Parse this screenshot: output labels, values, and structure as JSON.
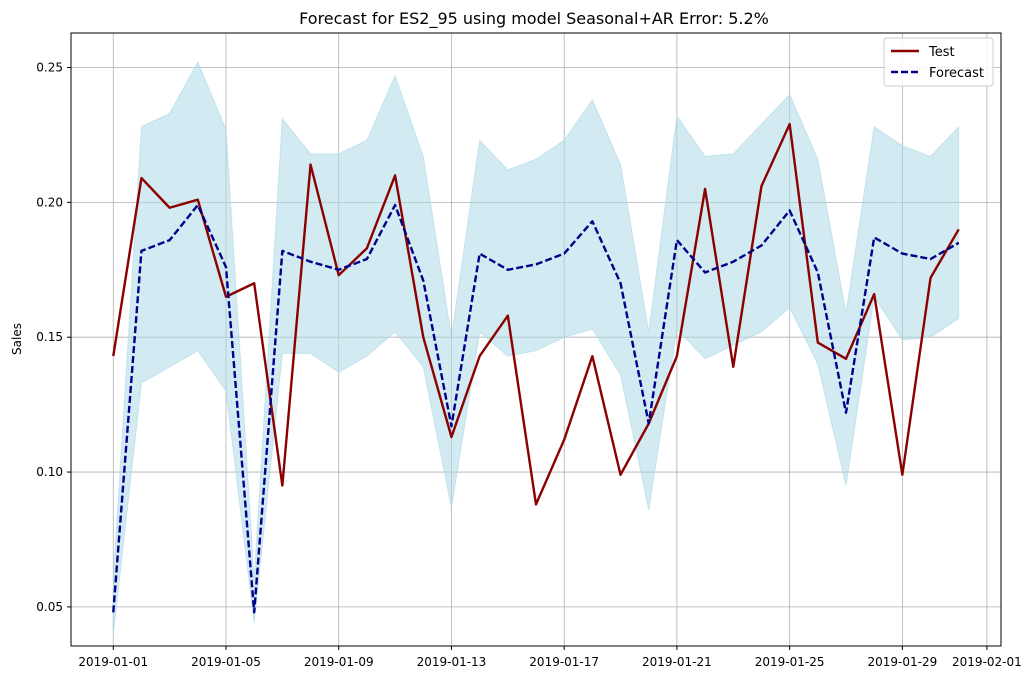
{
  "chart_data": {
    "type": "line",
    "title": "Forecast for ES2_95 using model Seasonal+AR Error: 5.2%",
    "xlabel": "",
    "ylabel": "Sales",
    "x": [
      "2019-01-01",
      "2019-01-02",
      "2019-01-03",
      "2019-01-04",
      "2019-01-05",
      "2019-01-06",
      "2019-01-07",
      "2019-01-08",
      "2019-01-09",
      "2019-01-10",
      "2019-01-11",
      "2019-01-12",
      "2019-01-13",
      "2019-01-14",
      "2019-01-15",
      "2019-01-16",
      "2019-01-17",
      "2019-01-18",
      "2019-01-19",
      "2019-01-20",
      "2019-01-21",
      "2019-01-22",
      "2019-01-23",
      "2019-01-24",
      "2019-01-25",
      "2019-01-26",
      "2019-01-27",
      "2019-01-28",
      "2019-01-29",
      "2019-01-30",
      "2019-01-31"
    ],
    "series": [
      {
        "name": "Test",
        "color": "#8b0000",
        "style": "solid",
        "values": [
          0.143,
          0.209,
          0.198,
          0.201,
          0.165,
          0.17,
          0.095,
          0.214,
          0.173,
          0.183,
          0.21,
          0.15,
          0.113,
          0.143,
          0.158,
          0.088,
          0.112,
          0.143,
          0.099,
          0.118,
          0.143,
          0.205,
          0.139,
          0.206,
          0.229,
          0.148,
          0.142,
          0.166,
          0.099,
          0.172,
          0.19
        ]
      },
      {
        "name": "Forecast",
        "color": "#00008b",
        "style": "dashed",
        "values": [
          0.048,
          0.182,
          0.186,
          0.199,
          0.176,
          0.048,
          0.182,
          0.178,
          0.175,
          0.179,
          0.199,
          0.171,
          0.117,
          0.181,
          0.175,
          0.177,
          0.181,
          0.193,
          0.17,
          0.118,
          0.186,
          0.174,
          0.178,
          0.184,
          0.197,
          0.174,
          0.122,
          0.187,
          0.181,
          0.179,
          0.185
        ]
      }
    ],
    "interval": {
      "color": "#add8e6",
      "lower": [
        0.04,
        0.133,
        0.139,
        0.145,
        0.13,
        0.044,
        0.144,
        0.144,
        0.137,
        0.143,
        0.152,
        0.139,
        0.087,
        0.152,
        0.143,
        0.145,
        0.15,
        0.153,
        0.136,
        0.086,
        0.153,
        0.142,
        0.147,
        0.152,
        0.161,
        0.14,
        0.095,
        0.165,
        0.149,
        0.15,
        0.157
      ],
      "upper": [
        0.06,
        0.228,
        0.233,
        0.252,
        0.227,
        0.06,
        0.231,
        0.218,
        0.218,
        0.223,
        0.247,
        0.217,
        0.15,
        0.223,
        0.212,
        0.216,
        0.223,
        0.238,
        0.214,
        0.152,
        0.232,
        0.217,
        0.218,
        0.229,
        0.24,
        0.216,
        0.159,
        0.228,
        0.221,
        0.217,
        0.228
      ]
    },
    "xticks": [
      "2019-01-01",
      "2019-01-05",
      "2019-01-09",
      "2019-01-13",
      "2019-01-17",
      "2019-01-21",
      "2019-01-25",
      "2019-01-29",
      "2019-02-01"
    ],
    "xlim": [
      "2018-12-30T12:00",
      "2019-02-01T12:00"
    ],
    "yticks": [
      0.05,
      0.1,
      0.15,
      0.2,
      0.25
    ],
    "ytick_labels": [
      "0.05",
      "0.10",
      "0.15",
      "0.20",
      "0.25"
    ],
    "ylim": [
      0.0355,
      0.2628
    ],
    "grid": true,
    "legend_position": "top-right"
  }
}
